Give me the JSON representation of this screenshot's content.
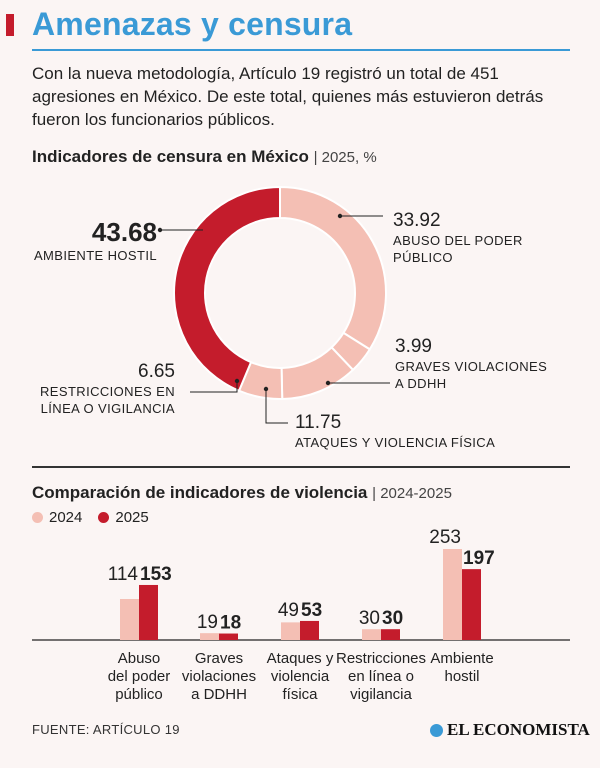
{
  "header": {
    "title": "Amenazas y censura"
  },
  "intro": "Con la nueva metodología, Artículo 19 registró un total de 451 agresiones en México. De este total, quienes más estuvieron detrás fueron los funcionarios públicos.",
  "section1": {
    "title": "Indicadores de censura en México",
    "subtitle": "| 2025, %"
  },
  "section2": {
    "title": "Comparación de indicadores de violencia",
    "subtitle": "| 2024-2025"
  },
  "legend": {
    "y2024": "2024",
    "y2025": "2025"
  },
  "colors": {
    "accent": "#c41c2c",
    "light": "#f4bfb4",
    "title": "#3a9ad6"
  },
  "footer": {
    "source": "FUENTE: ARTÍCULO 19",
    "brand": "EL ECONOMISTA"
  },
  "chart_data": [
    {
      "type": "pie",
      "title": "Indicadores de censura en México",
      "subtitle": "2025, %",
      "slices": [
        {
          "label_lines": [
            "ABUSO DEL PODER",
            "PÚBLICO"
          ],
          "value_text": "33.92",
          "value": 33.92,
          "color": "#f4bfb4"
        },
        {
          "label_lines": [
            "GRAVES VIOLACIONES",
            "A DDHH"
          ],
          "value_text": "3.99",
          "value": 3.99,
          "color": "#f4bfb4"
        },
        {
          "label_lines": [
            "ATAQUES Y VIOLENCIA FÍSICA"
          ],
          "value_text": "11.75",
          "value": 11.75,
          "color": "#f4bfb4"
        },
        {
          "label_lines": [
            "RESTRICCIONES EN",
            "LÍNEA O VIGILANCIA"
          ],
          "value_text": "6.65",
          "value": 6.65,
          "color": "#f4bfb4"
        },
        {
          "label_lines": [
            "AMBIENTE HOSTIL"
          ],
          "value_text": "43.68",
          "value": 43.68,
          "color": "#c41c2c"
        }
      ]
    },
    {
      "type": "bar",
      "title": "Comparación de indicadores de violencia",
      "subtitle": "2024-2025",
      "categories": [
        [
          "Abuso",
          "del poder",
          "público"
        ],
        [
          "Graves",
          "violaciones",
          "a DDHH"
        ],
        [
          "Ataques y",
          "violencia",
          "física"
        ],
        [
          "Restricciones",
          "en línea o",
          "vigilancia"
        ],
        [
          "Ambiente",
          "hostil"
        ]
      ],
      "series": [
        {
          "name": "2024",
          "values": [
            114,
            19,
            49,
            30,
            253
          ],
          "color": "#f4bfb4"
        },
        {
          "name": "2025",
          "values": [
            153,
            18,
            53,
            30,
            197
          ],
          "color": "#c41c2c"
        }
      ],
      "ylim": [
        0,
        253
      ]
    }
  ]
}
